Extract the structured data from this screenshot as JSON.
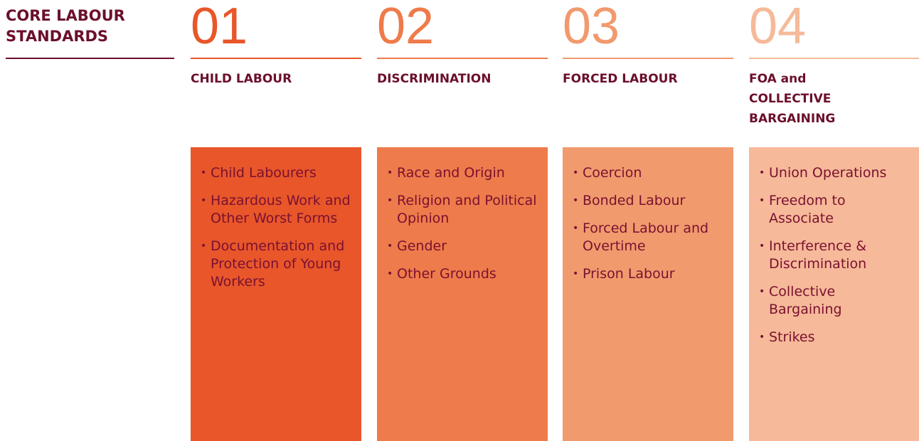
{
  "title": "CORE LABOUR STANDARDS",
  "columns": [
    {
      "number": "01",
      "heading": "CHILD LABOUR",
      "color": "#e8562a",
      "items": [
        "Child Labourers",
        "Hazardous Work and Other Worst Forms",
        "Documentation and Protection of Young Workers"
      ]
    },
    {
      "number": "02",
      "heading": "DISCRIMINATION",
      "color": "#ee7b4b",
      "items": [
        "Race and Origin",
        "Religion and Political Opinion",
        "Gender",
        "Other Grounds"
      ]
    },
    {
      "number": "03",
      "heading": "FORCED LABOUR",
      "color": "#f19a6e",
      "items": [
        "Coercion",
        "Bonded Labour",
        "Forced Labour and Overtime",
        "Prison Labour"
      ]
    },
    {
      "number": "04",
      "heading": "FOA and COLLECTIVE BARGAINING",
      "color": "#f6b999",
      "items": [
        "Union Operations",
        "Freedom to Associate",
        "Interference & Discrimination",
        "Collective Bargaining",
        "Strikes"
      ]
    }
  ]
}
